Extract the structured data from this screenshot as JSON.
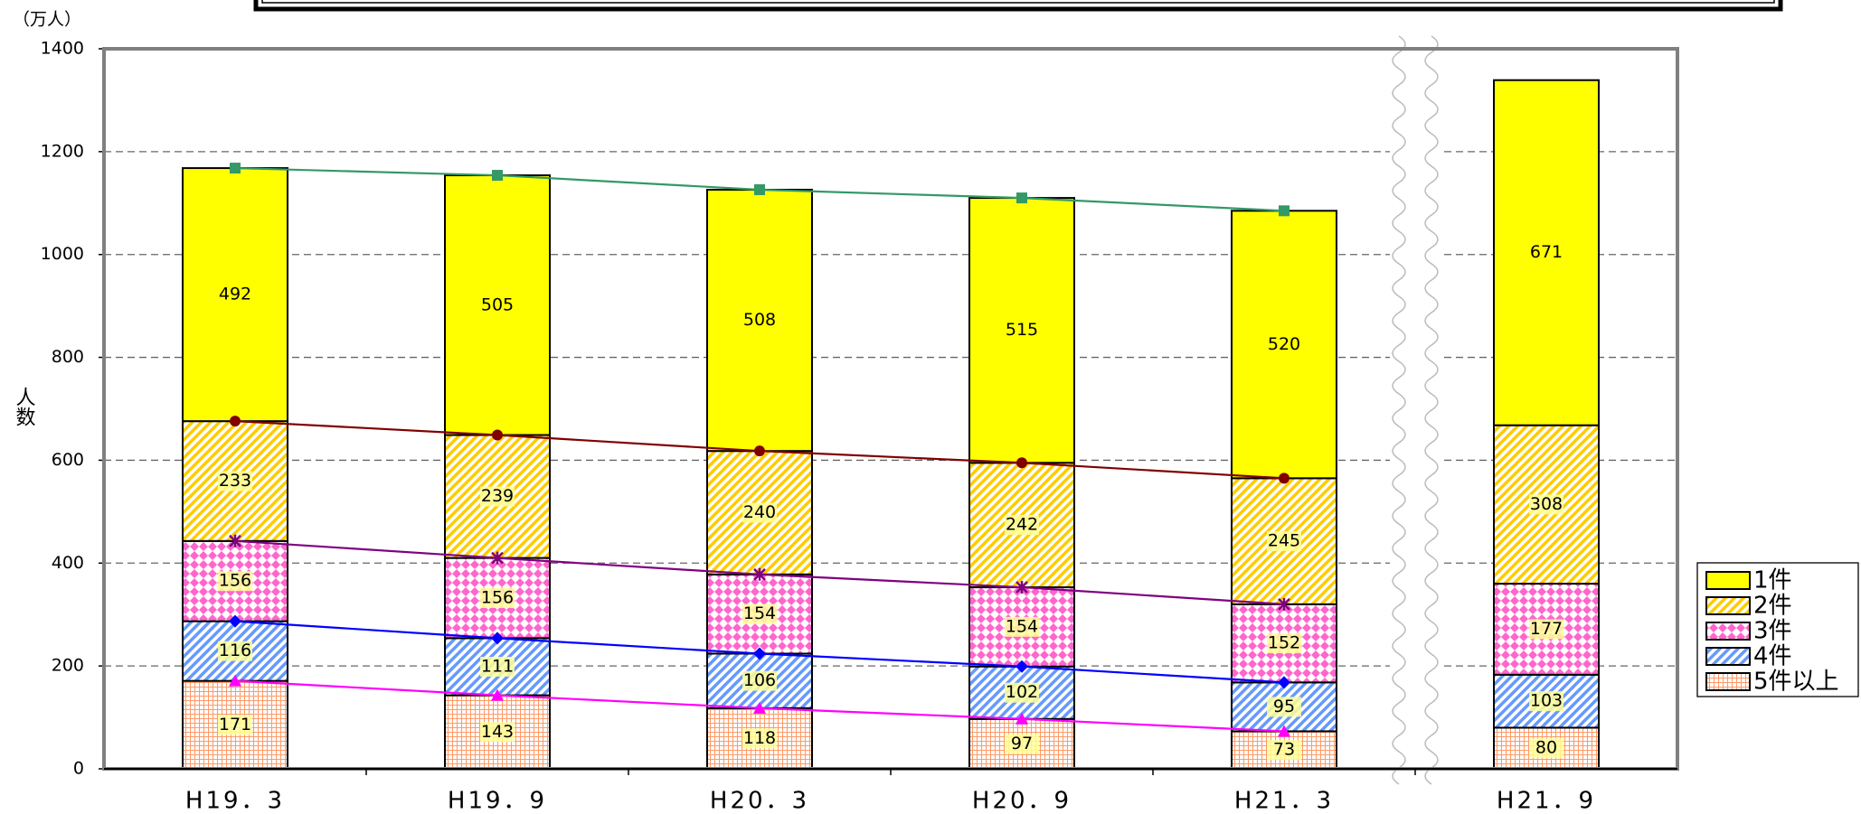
{
  "chart_data": {
    "type": "bar",
    "stacked": true,
    "y_label": "人数",
    "y_unit": "（万人）",
    "categories": [
      "H19．3",
      "H19．9",
      "H20．3",
      "H20．9",
      "H21．3",
      "H21．9"
    ],
    "series": [
      {
        "name": "1件",
        "color": "#ffff00",
        "pattern": "solid",
        "line_color": "#339966",
        "values": [
          492,
          505,
          508,
          515,
          520,
          671
        ]
      },
      {
        "name": "2件",
        "color": "#ffcc00",
        "pattern": "stripes",
        "line_color": "#800000",
        "values": [
          233,
          239,
          240,
          242,
          245,
          308
        ]
      },
      {
        "name": "3件",
        "color": "#ff66cc",
        "pattern": "diamonds",
        "line_color": "#800080",
        "values": [
          156,
          156,
          154,
          154,
          152,
          177
        ]
      },
      {
        "name": "4件",
        "color": "#6699ff",
        "pattern": "stripes",
        "line_color": "#0000ff",
        "values": [
          116,
          111,
          106,
          102,
          95,
          103
        ]
      },
      {
        "name": "5件以上",
        "color": "#ff9966",
        "pattern": "grid",
        "line_color": "#ff00ff",
        "values": [
          171,
          143,
          118,
          97,
          73,
          80
        ]
      }
    ],
    "ylim": [
      0,
      1400
    ],
    "yticks": [
      0,
      200,
      400,
      600,
      800,
      1000,
      1200,
      1400
    ],
    "grid": true,
    "axis_break_after": 4,
    "legend": "right"
  }
}
